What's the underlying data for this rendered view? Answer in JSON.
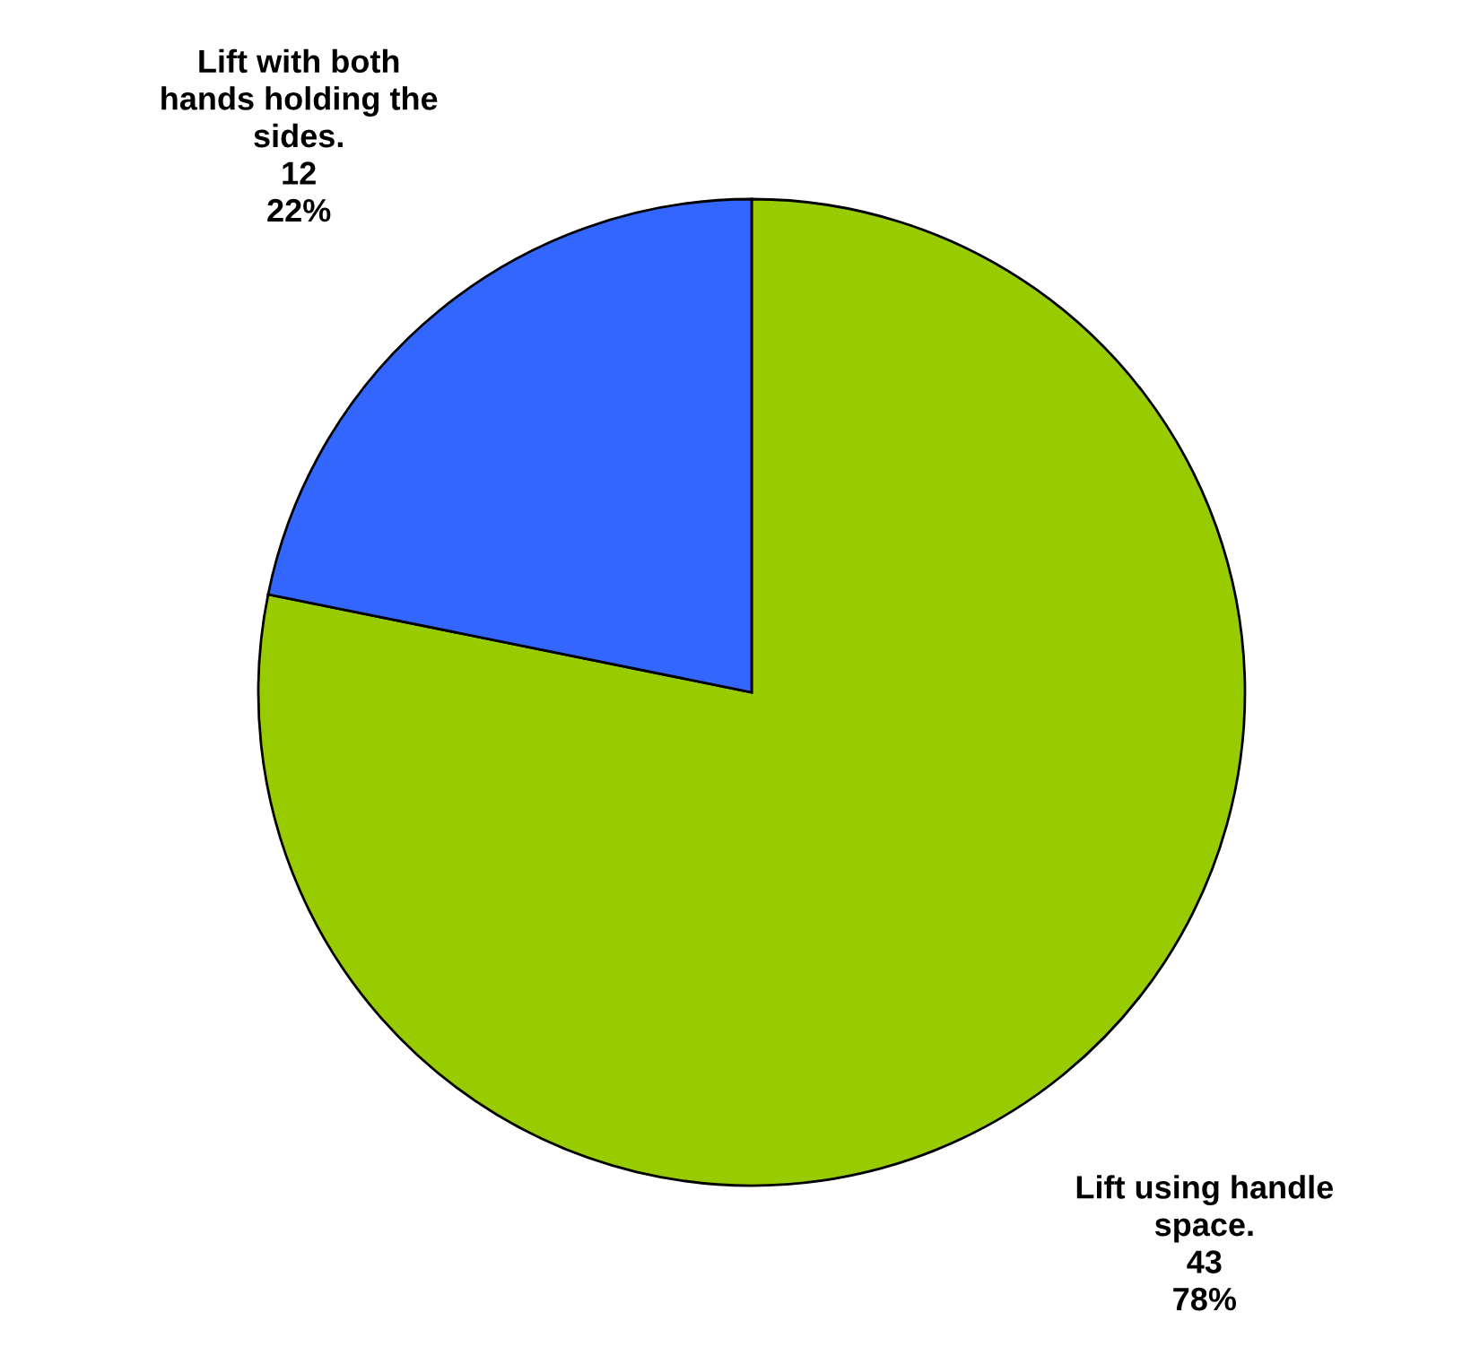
{
  "chart_data": {
    "type": "pie",
    "categories": [
      "Lift using handle\nspace.",
      "Lift with both\nhands holding the\nsides."
    ],
    "values": [
      43,
      12
    ],
    "colors": [
      "#99cc00",
      "#3366ff"
    ],
    "value_labels": [
      "43\n78%",
      "12\n22%"
    ]
  }
}
